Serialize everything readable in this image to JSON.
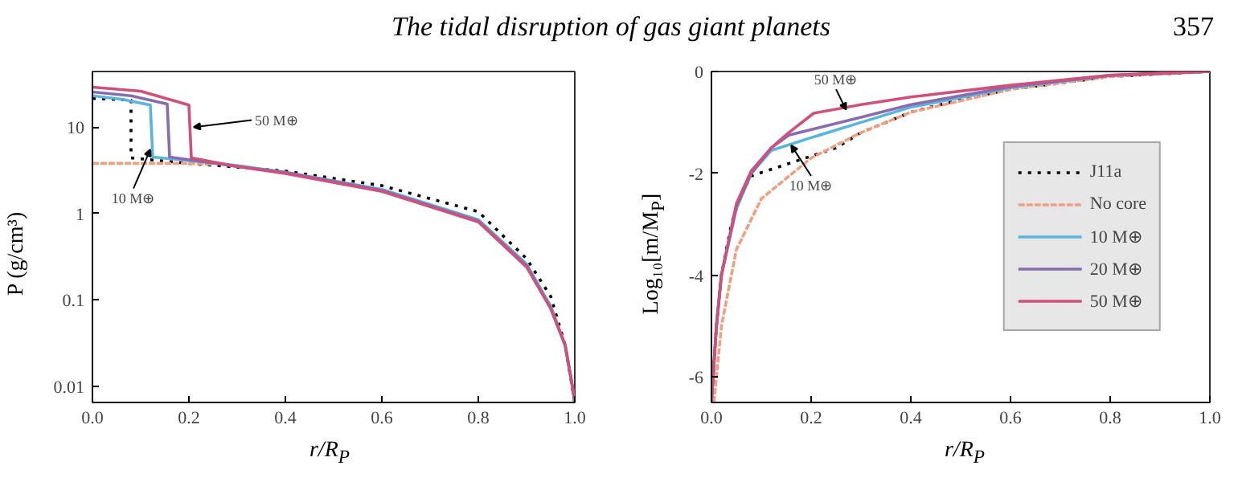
{
  "chart_data": [
    {
      "type": "line",
      "title": "The tidal disruption of gas giant planets",
      "annotations": [
        "357",
        {
          "text": "50 M⊕",
          "x": 0.21,
          "y": 10
        },
        {
          "text": "10 M⊕",
          "x": 0.12,
          "y": 5.5
        }
      ],
      "xlabel": "r/R$_{P}$",
      "ylabel": "P (g/cm³)",
      "log": "y",
      "grid": false,
      "legend": false,
      "xlim": [
        0,
        1
      ],
      "ylim": [
        0.0065,
        44
      ],
      "xticks": [
        {
          "value": 0,
          "label": "0.0"
        },
        {
          "value": 0.2,
          "label": "0.2"
        },
        {
          "value": 0.4,
          "label": "0.4"
        },
        {
          "value": 0.6,
          "label": "0.6"
        },
        {
          "value": 0.8,
          "label": "0.8"
        },
        {
          "value": 1,
          "label": "1.0"
        }
      ],
      "yticks": [
        0.01,
        0.1,
        1,
        10
      ],
      "series": [
        {
          "color": "#000000",
          "line_style": "dotted",
          "x": [
            0,
            0.04,
            0.08,
            0.08,
            0.2,
            0.4,
            0.6,
            0.8,
            0.9,
            0.95,
            0.98,
            1.0
          ],
          "values": [
            21.5,
            21,
            20.5,
            4.4,
            3.8,
            3.1,
            2.1,
            1.05,
            0.3,
            0.11,
            0.03,
            0.0065
          ]
        },
        {
          "color": "#f0a080",
          "line_style": "dashed",
          "x": [
            0,
            0.1,
            0.2,
            0.25
          ],
          "values": [
            3.8,
            3.8,
            3.8,
            3.7
          ]
        },
        {
          "color": "#5ab4e0",
          "line_style": "solid",
          "x": [
            0,
            0.06,
            0.12,
            0.125,
            0.3,
            0.4,
            0.6,
            0.8,
            0.9,
            0.95,
            0.98,
            0.995,
            1.0
          ],
          "values": [
            23,
            21,
            18,
            4.5,
            3.6,
            3.0,
            1.9,
            0.85,
            0.26,
            0.085,
            0.03,
            0.01,
            0.0065
          ]
        },
        {
          "color": "#8a6bb0",
          "line_style": "solid",
          "x": [
            0,
            0.08,
            0.155,
            0.16,
            0.3,
            0.4,
            0.6,
            0.8,
            0.9,
            0.95,
            0.98,
            0.995,
            1.0
          ],
          "values": [
            25.5,
            23,
            18.5,
            4.5,
            3.5,
            3.0,
            1.85,
            0.82,
            0.25,
            0.08,
            0.03,
            0.01,
            0.0065
          ]
        },
        {
          "color": "#d0507a",
          "line_style": "solid",
          "x": [
            0,
            0.1,
            0.2,
            0.205,
            0.3,
            0.4,
            0.6,
            0.8,
            0.9,
            0.95,
            0.98,
            0.995,
            1.0
          ],
          "values": [
            29,
            26,
            18,
            4.4,
            3.5,
            2.9,
            1.8,
            0.8,
            0.24,
            0.08,
            0.03,
            0.01,
            0.0065
          ]
        }
      ]
    },
    {
      "type": "line",
      "annotations": [
        {
          "text": "50 M⊕",
          "x": 0.27,
          "y": -0.75
        },
        {
          "text": "10 M⊕",
          "x": 0.16,
          "y": -1.45
        }
      ],
      "xlabel": "r/R$_{P}$",
      "ylabel": "Log₁₀[m/M$_{P}$]",
      "grid": false,
      "legend": "right",
      "xlim": [
        0,
        1
      ],
      "ylim": [
        -6.5,
        0
      ],
      "xticks": [
        {
          "value": 0,
          "label": "0.0"
        },
        {
          "value": 0.2,
          "label": "0.2"
        },
        {
          "value": 0.4,
          "label": "0.4"
        },
        {
          "value": 0.6,
          "label": "0.6"
        },
        {
          "value": 0.8,
          "label": "0.8"
        },
        {
          "value": 1,
          "label": "1.0"
        }
      ],
      "yticks": [
        0,
        -2,
        -4,
        -6
      ],
      "series": [
        {
          "name": "J11a",
          "color": "#000000",
          "line_style": "dotted",
          "x": [
            0,
            0.01,
            0.02,
            0.04,
            0.06,
            0.08,
            0.25,
            0.3,
            0.4,
            0.5,
            0.6,
            0.8,
            1.0
          ],
          "values": [
            -6.5,
            -5,
            -4,
            -3,
            -2.4,
            -2.05,
            -1.5,
            -1.2,
            -0.8,
            -0.55,
            -0.35,
            -0.1,
            0
          ]
        },
        {
          "name": "No core",
          "color": "#f0a080",
          "line_style": "dashed",
          "x": [
            0.005,
            0.02,
            0.05,
            0.1,
            0.2,
            0.3,
            0.4,
            0.6,
            0.8,
            1.0
          ],
          "values": [
            -6.5,
            -5,
            -3.5,
            -2.5,
            -1.7,
            -1.2,
            -0.8,
            -0.35,
            -0.1,
            0
          ]
        },
        {
          "name": "10 M⊕",
          "color": "#5ab4e0",
          "line_style": "solid",
          "x": [
            0,
            0.01,
            0.02,
            0.05,
            0.08,
            0.12,
            0.2,
            0.3,
            0.4,
            0.6,
            0.8,
            1.0
          ],
          "values": [
            -6.5,
            -5,
            -4,
            -2.7,
            -2.0,
            -1.55,
            -1.3,
            -1.0,
            -0.7,
            -0.32,
            -0.08,
            0
          ]
        },
        {
          "name": "20 M⊕",
          "color": "#8a6bb0",
          "line_style": "solid",
          "x": [
            0,
            0.01,
            0.02,
            0.05,
            0.08,
            0.12,
            0.155,
            0.3,
            0.4,
            0.6,
            0.8,
            1.0
          ],
          "values": [
            -6.5,
            -5,
            -4,
            -2.65,
            -2.0,
            -1.5,
            -1.25,
            -0.9,
            -0.65,
            -0.3,
            -0.08,
            0
          ]
        },
        {
          "name": "50 M⊕",
          "color": "#d0507a",
          "line_style": "solid",
          "x": [
            0,
            0.01,
            0.02,
            0.05,
            0.08,
            0.12,
            0.155,
            0.205,
            0.3,
            0.4,
            0.6,
            0.8,
            1.0
          ],
          "values": [
            -6.5,
            -5,
            -4,
            -2.6,
            -1.95,
            -1.5,
            -1.2,
            -0.82,
            -0.65,
            -0.5,
            -0.27,
            -0.07,
            0
          ]
        }
      ]
    }
  ]
}
